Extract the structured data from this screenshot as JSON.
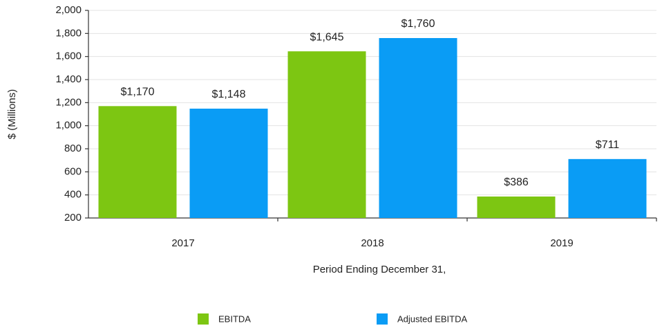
{
  "chart_data": {
    "type": "bar",
    "y_label": "$ (Millions)",
    "x_label": "Period Ending December 31,",
    "categories": [
      "2017",
      "2018",
      "2019"
    ],
    "series": [
      {
        "name": "EBITDA",
        "color": "#7dc612",
        "values": [
          1170,
          1645,
          386
        ],
        "value_labels": [
          "$1,170",
          "$1,645",
          "$386"
        ]
      },
      {
        "name": "Adjusted EBITDA",
        "color": "#0a9cf5",
        "values": [
          1148,
          1760,
          711
        ],
        "value_labels": [
          "$1,148",
          "$1,760",
          "$711"
        ]
      }
    ],
    "ylim": [
      200,
      2000
    ],
    "yticks": [
      200,
      400,
      600,
      800,
      {
        "value": 1000,
        "label": "1,000"
      },
      {
        "value": 1200,
        "label": "1,200"
      },
      {
        "value": 1400,
        "label": "1,400"
      },
      {
        "value": 1600,
        "label": "1,600"
      },
      {
        "value": 1800,
        "label": "1,800"
      },
      {
        "value": 2000,
        "label": "2,000"
      }
    ],
    "grid": true,
    "legend": "bottom"
  }
}
